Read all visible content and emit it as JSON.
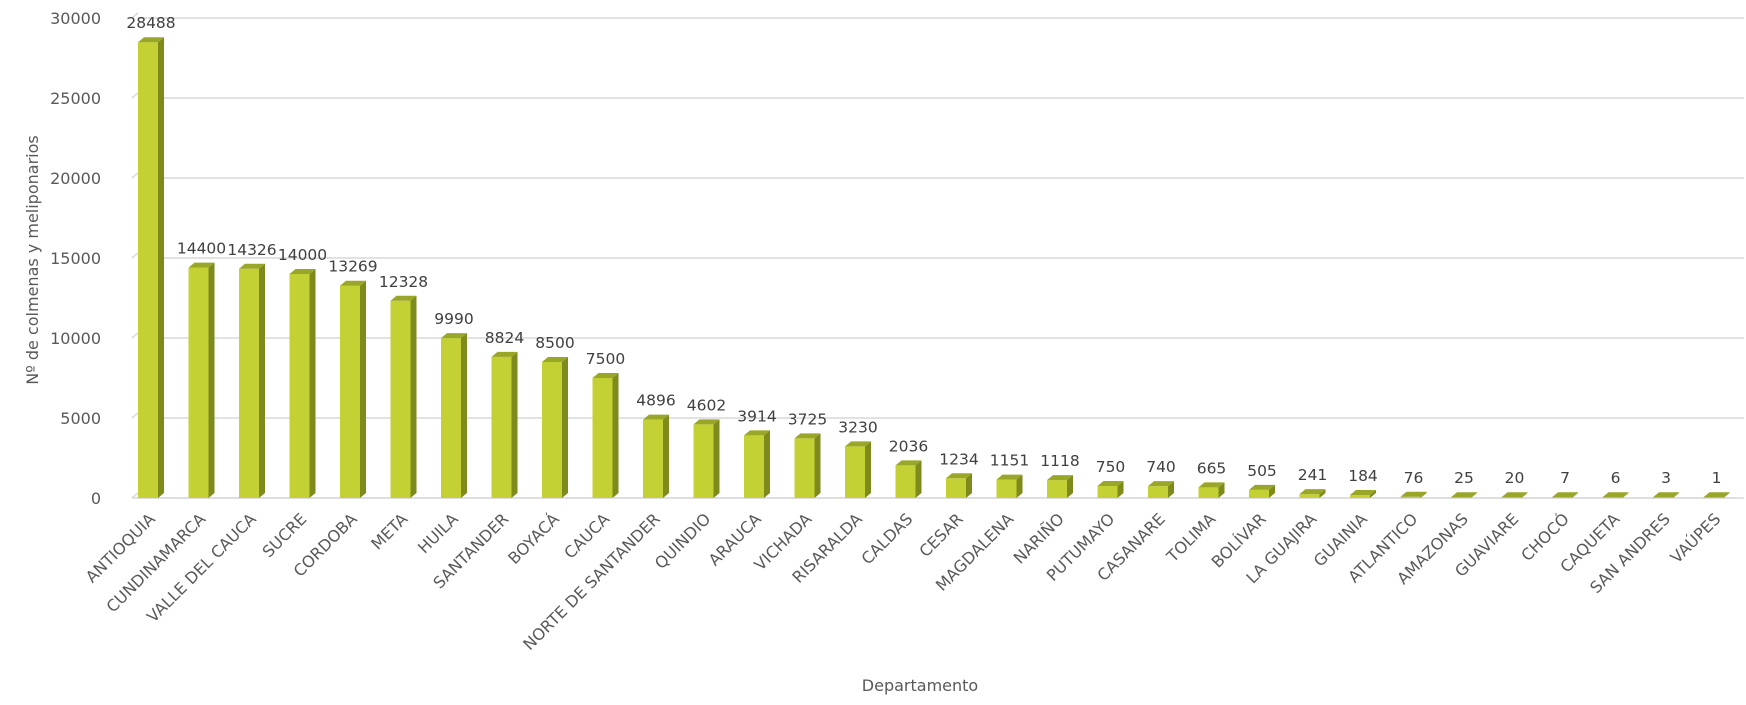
{
  "chart_data": {
    "type": "bar",
    "title": "",
    "xlabel": "Departamento",
    "ylabel": "Nº de colmenas y meliponarios",
    "ylim": [
      0,
      30000
    ],
    "yticks": [
      0,
      5000,
      10000,
      15000,
      20000,
      25000,
      30000
    ],
    "grid": true,
    "legend": "none",
    "bar_color": "#c3d135",
    "bar_side_color": "#7e8a1c",
    "bar_top_color": "#9aa628",
    "categories": [
      "ANTIOQUIA",
      "CUNDINAMARCA",
      "VALLE DEL CAUCA",
      "SUCRE",
      "CORDOBA",
      "META",
      "HUILA",
      "SANTANDER",
      "BOYACÁ",
      "CAUCA",
      "NORTE DE SANTANDER",
      "QUINDIO",
      "ARAUCA",
      "VICHADA",
      "RISARALDA",
      "CALDAS",
      "CESAR",
      "MAGDALENA",
      "NARIÑO",
      "PUTUMAYO",
      "CASANARE",
      "TOLIMA",
      "BOLÍVAR",
      "LA GUAJIRA",
      "GUAINIA",
      "ATLANTICO",
      "AMAZONAS",
      "GUAVIARE",
      "CHOCÓ",
      "CAQUETA",
      "SAN ANDRES",
      "VAÚPES"
    ],
    "values": [
      28488,
      14400,
      14326,
      14000,
      13269,
      12328,
      9990,
      8824,
      8500,
      7500,
      4896,
      4602,
      3914,
      3725,
      3230,
      2036,
      1234,
      1151,
      1118,
      750,
      740,
      665,
      505,
      241,
      184,
      76,
      25,
      20,
      7,
      6,
      3,
      1
    ]
  }
}
